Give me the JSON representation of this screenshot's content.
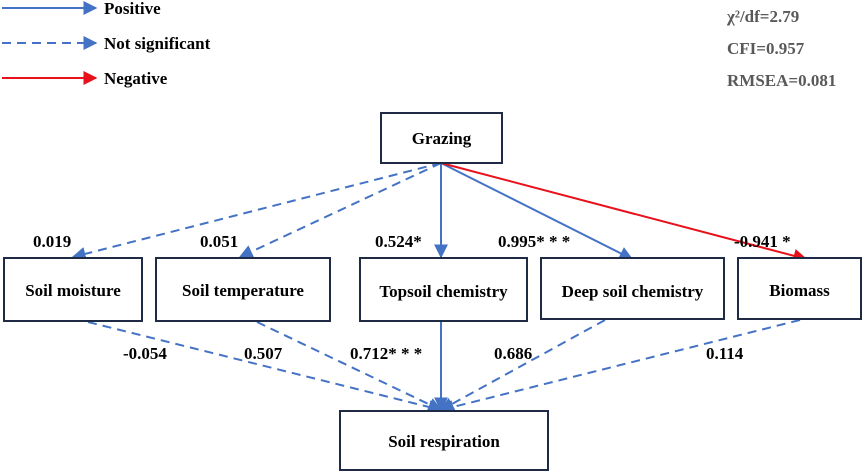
{
  "colors": {
    "positive": "#4472c4",
    "not_significant": "#4472c4",
    "negative": "#e8101a",
    "box_stroke": "#1f2a44",
    "stat_text": "#595959"
  },
  "legend": {
    "positive": "Positive",
    "not_significant": "Not significant",
    "negative": "Negative"
  },
  "fit_stats": {
    "chi2_df": "χ²/df=2.79",
    "cfi": "CFI=0.957",
    "rmsea": "RMSEA=0.081"
  },
  "nodes": {
    "grazing": "Grazing",
    "soil_moisture": "Soil moisture",
    "soil_temperature": "Soil temperature",
    "topsoil_chemistry": "Topsoil chemistry",
    "deep_soil_chemistry": "Deep soil chemistry",
    "biomass": "Biomass",
    "soil_respiration": "Soil respiration"
  },
  "paths": {
    "grazing_to_soil_moisture": {
      "coef": "0.019",
      "type": "not_significant"
    },
    "grazing_to_soil_temperature": {
      "coef": "0.051",
      "type": "not_significant"
    },
    "grazing_to_topsoil_chemistry": {
      "coef": "0.524*",
      "type": "positive"
    },
    "grazing_to_deep_soil_chemistry": {
      "coef": "0.995* * *",
      "type": "positive"
    },
    "grazing_to_biomass": {
      "coef": "-0.941 *",
      "type": "negative"
    },
    "soil_moisture_to_soil_respiration": {
      "coef": "-0.054",
      "type": "not_significant"
    },
    "soil_temperature_to_soil_respiration": {
      "coef": "0.507",
      "type": "not_significant"
    },
    "topsoil_chemistry_to_soil_respiration": {
      "coef": "0.712* * *",
      "type": "positive"
    },
    "deep_soil_chemistry_to_soil_respiration": {
      "coef": "0.686",
      "type": "not_significant"
    },
    "biomass_to_soil_respiration": {
      "coef": "0.114",
      "type": "not_significant"
    }
  }
}
